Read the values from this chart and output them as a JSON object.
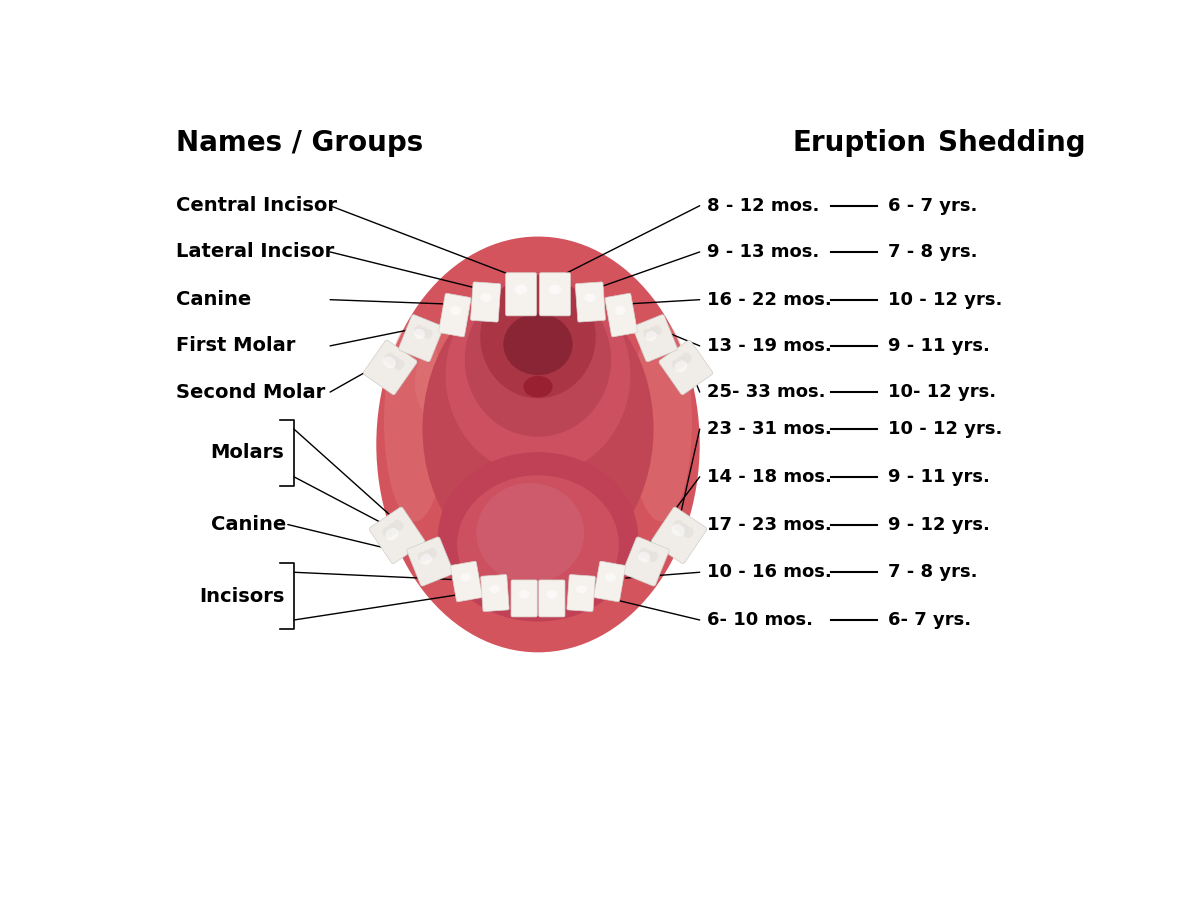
{
  "header_names_groups": "Names / Groups",
  "header_eruption": "Eruption",
  "header_shedding": "Shedding",
  "upper_teeth": [
    {
      "name": "Central Incisor",
      "eruption": "8 - 12 mos.",
      "shedding": "6 - 7 yrs."
    },
    {
      "name": "Lateral Incisor",
      "eruption": "9 - 13 mos.",
      "shedding": "7 - 8 yrs."
    },
    {
      "name": "Canine",
      "eruption": "16 - 22 mos.",
      "shedding": "10 - 12 yrs."
    },
    {
      "name": "First Molar",
      "eruption": "13 - 19 mos.",
      "shedding": "9 - 11 yrs."
    },
    {
      "name": "Second Molar",
      "eruption": "25- 33 mos.",
      "shedding": "10- 12 yrs."
    }
  ],
  "lower_eruptions": [
    "23 - 31 mos.",
    "14 - 18 mos.",
    "17 - 23 mos.",
    "10 - 16 mos.",
    "6- 10 mos."
  ],
  "lower_sheddings": [
    "10 - 12 yrs.",
    "9 - 11 yrs.",
    "9 - 12 yrs.",
    "7 - 8 yrs.",
    "6- 7 yrs."
  ],
  "bg_color": "#ffffff",
  "header_fontsize": 20,
  "label_fontsize": 14,
  "data_fontsize": 13
}
